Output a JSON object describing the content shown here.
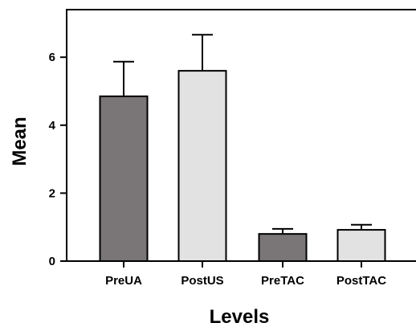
{
  "chart_data": {
    "type": "bar",
    "title": "",
    "xlabel": "Levels",
    "ylabel": "Mean",
    "categories": [
      "PreUA",
      "PostUS",
      "PreTAC",
      "PostTAC"
    ],
    "values": [
      4.85,
      5.6,
      0.8,
      0.92
    ],
    "error_upper": [
      1.02,
      1.06,
      0.15,
      0.15
    ],
    "ylim": [
      0,
      7.4
    ],
    "yticks": [
      0,
      2,
      4,
      6
    ],
    "ytick_labels": [
      "0",
      "2",
      "4",
      "6"
    ],
    "bar_colors": [
      "#7a7576",
      "#e2e2e2",
      "#7a7576",
      "#e2e2e2"
    ],
    "grid": false,
    "legend": "none"
  }
}
